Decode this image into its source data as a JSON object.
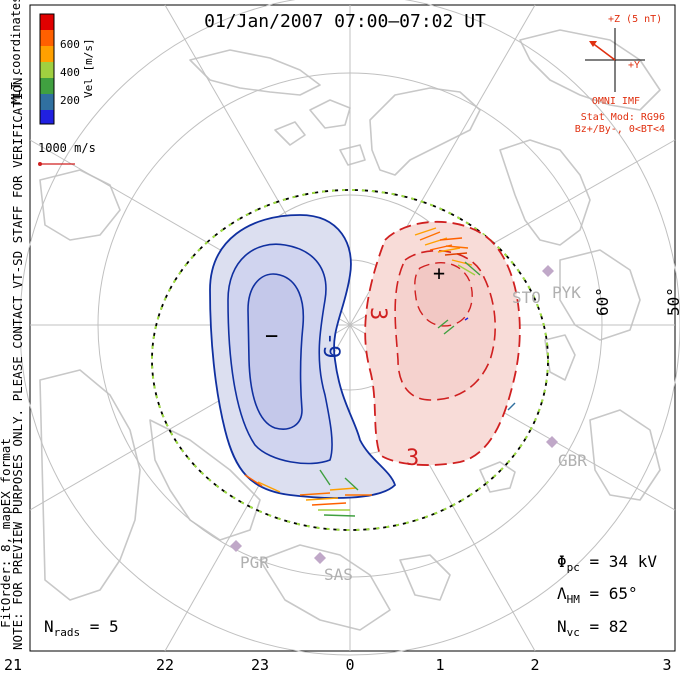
{
  "title": "01/Jan/2007 07:00–07:02 UT",
  "colorbar": {
    "label": "Vel [m/s]",
    "ticks": [
      "600",
      "400",
      "200"
    ],
    "colors": [
      "#e00000",
      "#ff6000",
      "#ffa000",
      "#a0d040",
      "#40a040",
      "#3070a0",
      "#2020e0"
    ]
  },
  "coordinate_label": "MLT coordinates",
  "scale_vector_label": "1000 m/s",
  "imf": {
    "z_label": "+Z (5 nT)",
    "y_label": "+Y",
    "source": "OMNI IMF",
    "stat_model": "Stat Mod: RG96",
    "condition": "Bz+/By-, 0<BT<4"
  },
  "side_notes": {
    "preview": "NOTE: FOR PREVIEW PURPOSES ONLY. PLEASE CONTACT VT-SD STAFF FOR VERIFICATION.",
    "fit": "FitOrder: 8, mapEX format"
  },
  "latitude_labels": [
    "60°",
    "50°"
  ],
  "contour_labels": [
    "-9",
    "3",
    "3"
  ],
  "potential_markers": [
    "−",
    "+"
  ],
  "stations": [
    "STO",
    "PYK",
    "GBR",
    "PGR",
    "SAS"
  ],
  "mlt_ticks": [
    "21",
    "22",
    "23",
    "0",
    "1",
    "2",
    "3"
  ],
  "stats": {
    "phi_pc": {
      "symbol": "Φ",
      "sub": "pc",
      "value": " = 34 kV"
    },
    "lambda_hm": {
      "symbol": "Λ",
      "sub": "HM",
      "value": " = 65°"
    },
    "n_vc": {
      "symbol": "N",
      "sub": "vc",
      "value": " = 82"
    },
    "n_rads": {
      "symbol": "N",
      "sub": "rads",
      "value": " = 5"
    }
  },
  "colors": {
    "negative_fill": "#dcdff0",
    "negative_inner": "#c4c8ea",
    "negative_line": "#1030a0",
    "positive_fill": "#f8dcd8",
    "positive_inner": "#f2c8c4",
    "positive_line": "#d02020",
    "imf_color": "#e03010",
    "coast": "#c8c8c8",
    "grid": "#c0c0c0",
    "boundary_dash": "#a0e040"
  }
}
